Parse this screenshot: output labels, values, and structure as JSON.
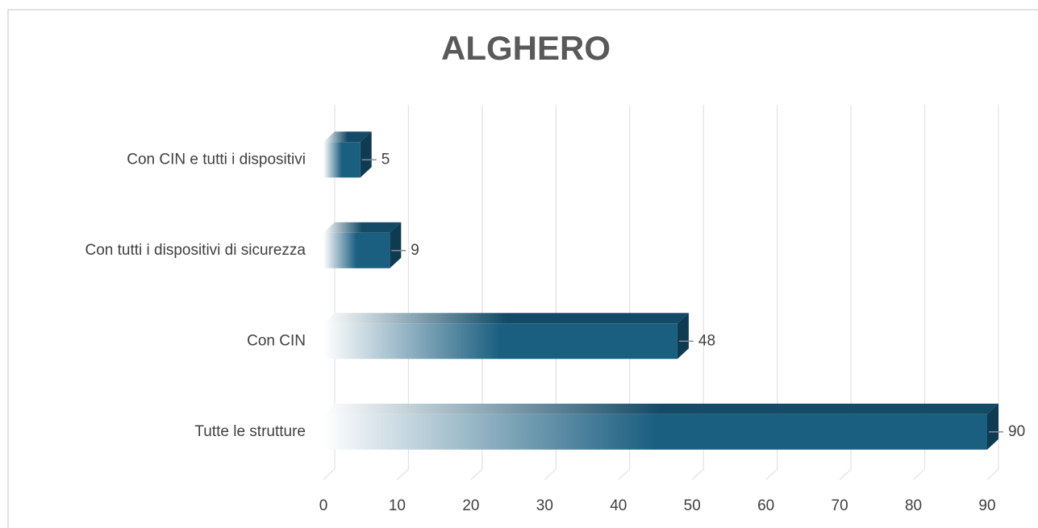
{
  "chart_data": {
    "type": "bar3d_horizontal",
    "title": "ALGHERO",
    "categories": [
      "Con CIN e tutti i dispositivi",
      "Con tutti i dispositivi di sicurezza",
      "Con CIN",
      "Tutte le strutture"
    ],
    "values": [
      5,
      9,
      48,
      90
    ],
    "color": "#1a5e80",
    "xlim": [
      0,
      90
    ],
    "xticks": [
      0,
      10,
      20,
      30,
      40,
      50,
      60,
      70,
      80,
      90
    ],
    "grid": true
  }
}
